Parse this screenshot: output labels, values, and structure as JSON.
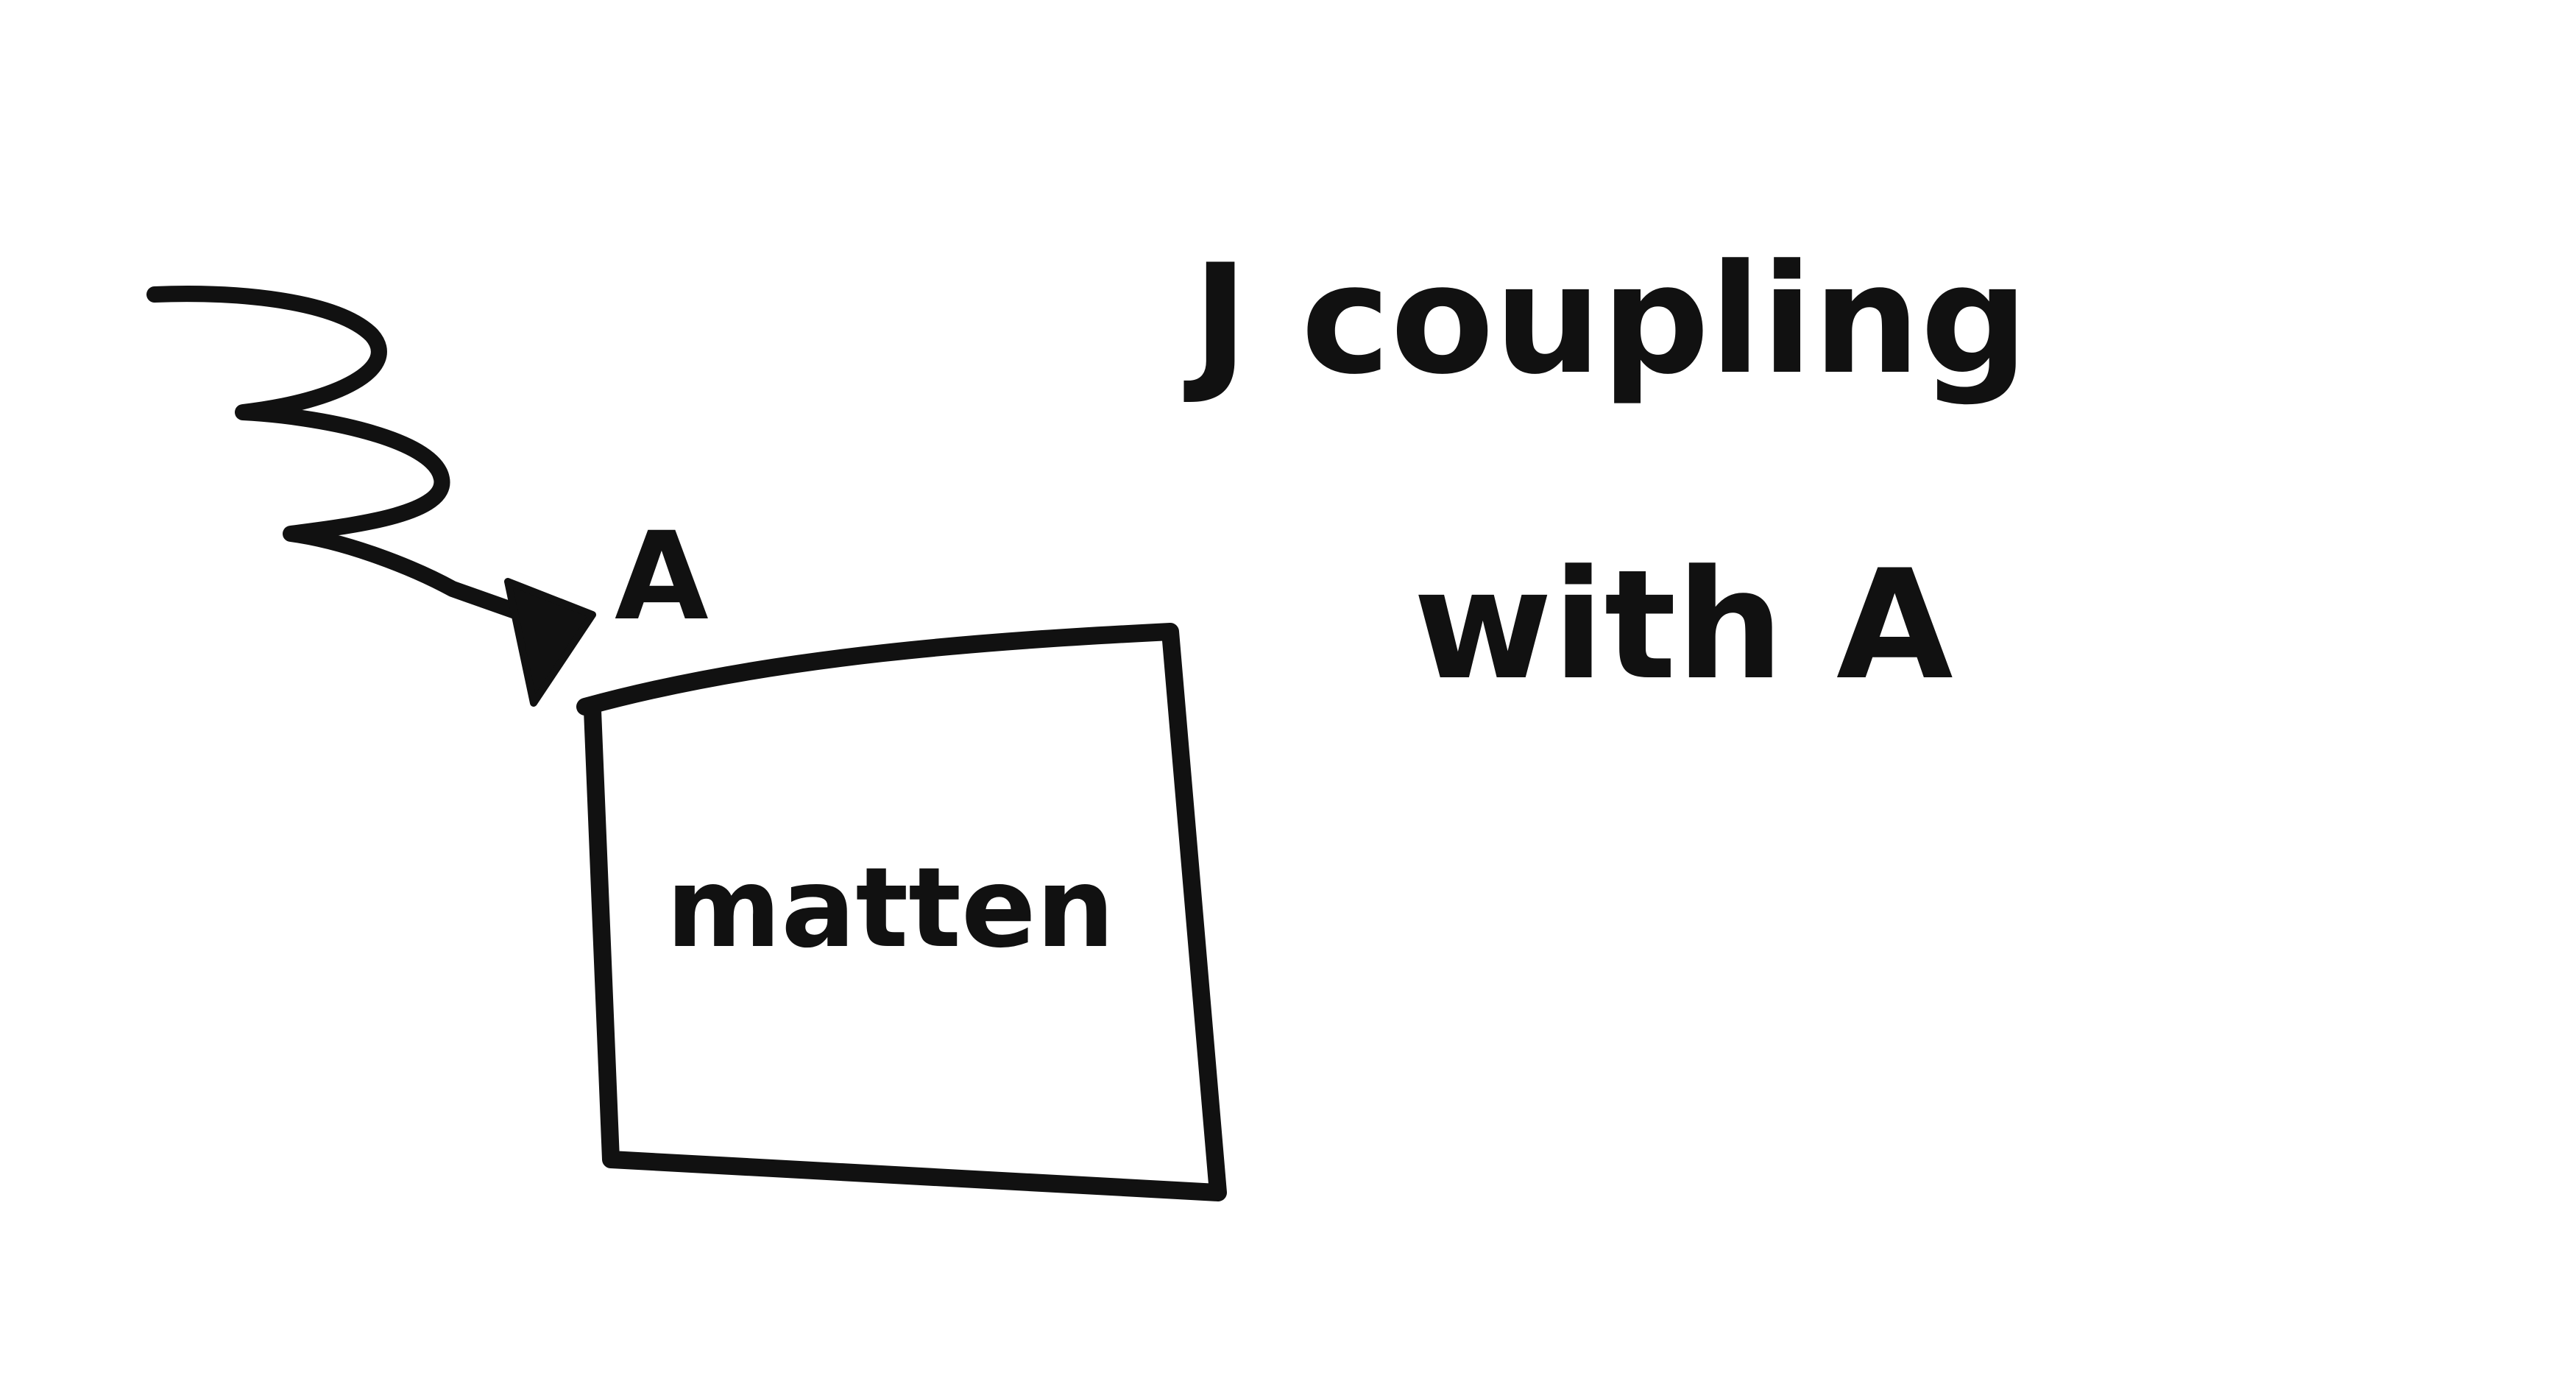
{
  "diagram": {
    "incoming_field_label": "A",
    "box_label": "matten",
    "annotation_line1": "J coupling",
    "annotation_line2": "with A"
  },
  "colors": {
    "background": "#ffffff",
    "ink": "#111111"
  }
}
